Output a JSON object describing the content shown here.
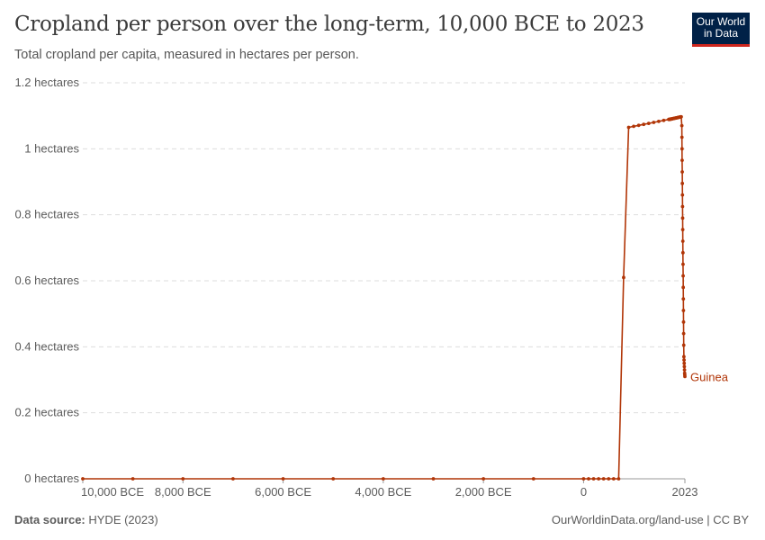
{
  "header": {
    "title": "Cropland per person over the long-term, 10,000 BCE to 2023",
    "subtitle": "Total cropland per capita, measured in hectares per person.",
    "logo": "Our World in Data"
  },
  "footer": {
    "source_label": "Data source:",
    "source": "HYDE (2023)",
    "link": "OurWorldinData.org/land-use | CC BY"
  },
  "chart_data": {
    "type": "line",
    "title": "Cropland per person over the long-term, 10,000 BCE to 2023",
    "subtitle": "Total cropland per capita, measured in hectares per person.",
    "xlim": [
      -10000,
      2023
    ],
    "ylim": [
      0,
      1.2
    ],
    "grid": "horizontal dashed",
    "yticks": [
      {
        "v": 0,
        "label": "0 hectares"
      },
      {
        "v": 0.2,
        "label": "0.2 hectares"
      },
      {
        "v": 0.4,
        "label": "0.4 hectares"
      },
      {
        "v": 0.6,
        "label": "0.6 hectares"
      },
      {
        "v": 0.8,
        "label": "0.8 hectares"
      },
      {
        "v": 1,
        "label": "1 hectares"
      },
      {
        "v": 1.2,
        "label": "1.2 hectares"
      }
    ],
    "xticks": [
      {
        "v": -10000,
        "label": "10,000 BCE"
      },
      {
        "v": -8000,
        "label": "8,000 BCE"
      },
      {
        "v": -6000,
        "label": "6,000 BCE"
      },
      {
        "v": -4000,
        "label": "4,000 BCE"
      },
      {
        "v": -2000,
        "label": "2,000 BCE"
      },
      {
        "v": 0,
        "label": "0"
      },
      {
        "v": 2023,
        "label": "2023"
      }
    ],
    "series": [
      {
        "name": "Guinea",
        "color": "#b13507",
        "x": [
          -10000,
          -9000,
          -8000,
          -7000,
          -6000,
          -5000,
          -4000,
          -3000,
          -2000,
          -1000,
          0,
          100,
          200,
          300,
          400,
          500,
          600,
          700,
          800,
          900,
          1000,
          1100,
          1200,
          1300,
          1400,
          1500,
          1600,
          1700,
          1710,
          1720,
          1730,
          1740,
          1750,
          1760,
          1770,
          1780,
          1790,
          1800,
          1810,
          1820,
          1830,
          1840,
          1850,
          1860,
          1870,
          1880,
          1890,
          1900,
          1910,
          1920,
          1930,
          1940,
          1950,
          1962,
          1964,
          1966,
          1968,
          1970,
          1972,
          1974,
          1976,
          1978,
          1980,
          1982,
          1984,
          1986,
          1988,
          1990,
          1992,
          1994,
          1996,
          1998,
          2000,
          2003,
          2006,
          2009,
          2012,
          2015,
          2018,
          2021,
          2023
        ],
        "y": [
          0,
          0,
          0,
          0,
          0,
          0,
          0,
          0,
          0,
          0,
          0,
          0,
          0,
          0,
          0,
          0,
          0,
          0,
          0.61,
          1.065,
          1.068,
          1.071,
          1.074,
          1.077,
          1.08,
          1.083,
          1.086,
          1.089,
          1.089,
          1.089,
          1.09,
          1.09,
          1.09,
          1.091,
          1.091,
          1.091,
          1.092,
          1.092,
          1.092,
          1.093,
          1.093,
          1.093,
          1.094,
          1.094,
          1.094,
          1.095,
          1.095,
          1.095,
          1.096,
          1.096,
          1.096,
          1.097,
          1.097,
          1.07,
          1.035,
          1.0,
          0.965,
          0.93,
          0.895,
          0.86,
          0.825,
          0.79,
          0.755,
          0.72,
          0.685,
          0.65,
          0.615,
          0.58,
          0.545,
          0.51,
          0.475,
          0.44,
          0.405,
          0.37,
          0.36,
          0.35,
          0.34,
          0.33,
          0.32,
          0.315,
          0.31
        ]
      }
    ]
  }
}
